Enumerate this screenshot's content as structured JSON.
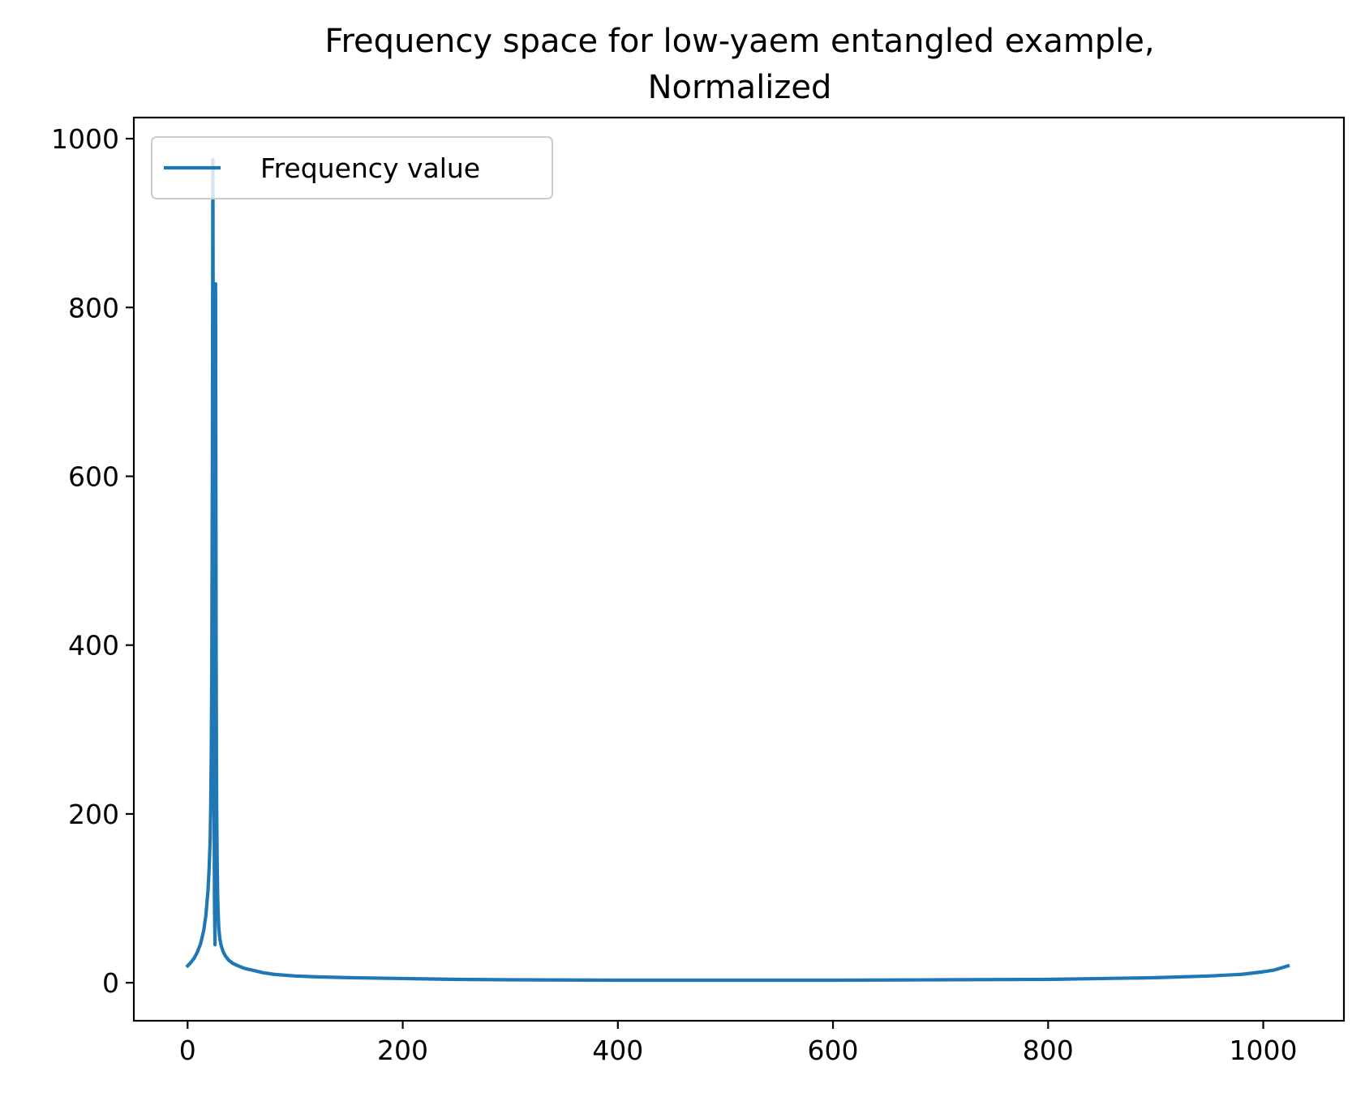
{
  "chart_data": {
    "type": "line",
    "title_lines": [
      "Frequency space for low-yaem entangled example,",
      "Normalized"
    ],
    "xlabel": "",
    "ylabel": "",
    "xlim": [
      -50,
      1075
    ],
    "ylim": [
      -45,
      1025
    ],
    "xticks": [
      0,
      200,
      400,
      600,
      800,
      1000
    ],
    "yticks": [
      0,
      200,
      400,
      600,
      800,
      1000
    ],
    "grid": false,
    "legend_position": "top-left",
    "series": [
      {
        "name": "Frequency value",
        "color": "#1f77b4",
        "x": [
          0,
          3,
          6,
          9,
          12,
          15,
          17,
          19,
          20,
          21,
          21.5,
          22,
          22.5,
          23,
          23.5,
          24,
          24.5,
          25,
          25.5,
          26,
          26.5,
          27,
          27.5,
          28,
          28.5,
          29,
          30,
          31,
          33,
          35,
          38,
          42,
          47,
          53,
          60,
          70,
          80,
          100,
          120,
          150,
          200,
          250,
          300,
          400,
          500,
          600,
          700,
          800,
          850,
          900,
          950,
          980,
          1000,
          1010,
          1023
        ],
        "y": [
          20,
          24,
          29,
          36,
          46,
          62,
          80,
          110,
          135,
          170,
          210,
          270,
          380,
          600,
          975,
          600,
          260,
          90,
          45,
          828,
          400,
          210,
          140,
          100,
          80,
          65,
          52,
          45,
          37,
          32,
          27,
          23,
          20,
          17,
          15,
          12,
          10,
          8,
          7,
          6,
          5,
          4,
          3.5,
          3,
          3,
          3,
          3.5,
          4,
          5,
          6,
          8,
          10,
          13,
          15,
          20
        ]
      }
    ]
  }
}
